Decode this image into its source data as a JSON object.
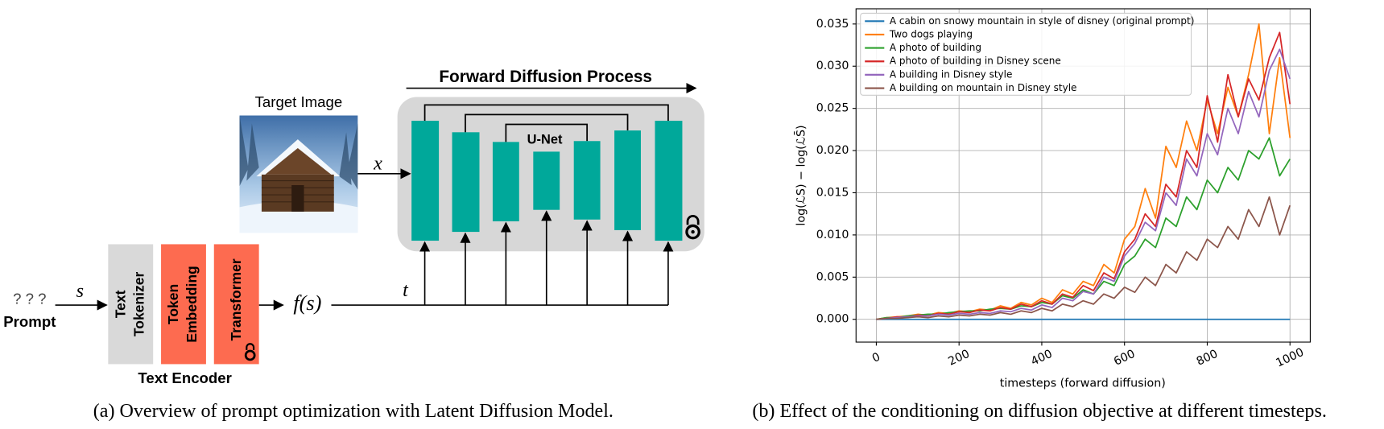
{
  "diagram": {
    "title": "Forward Diffusion Process",
    "target_image_label": "Target Image",
    "unet_label": "U-Net",
    "x_label": "x",
    "t_label": "t",
    "s_label": "s",
    "fs_label": "f(s)",
    "prompt_tokens": "? ? ?",
    "prompt_label": "Prompt",
    "encoder_blocks": [
      [
        "Text",
        "Tokenizer"
      ],
      [
        "Token",
        "Embedding"
      ],
      [
        "Transformer"
      ]
    ],
    "encoder_label": "Text Encoder",
    "caption": "(a) Overview of prompt optimization with Latent Diffusion Model."
  },
  "chart_data": {
    "type": "line",
    "caption": "(b) Effect of the conditioning on diffusion objective at different timesteps.",
    "xlabel": "timesteps (forward diffusion)",
    "ylabel": "log(ℒS) − log(ℒS̄)",
    "x": [
      0,
      25,
      50,
      75,
      100,
      125,
      150,
      175,
      200,
      225,
      250,
      275,
      300,
      325,
      350,
      375,
      400,
      425,
      450,
      475,
      500,
      525,
      550,
      575,
      600,
      625,
      650,
      675,
      700,
      725,
      750,
      775,
      800,
      825,
      850,
      875,
      900,
      925,
      950,
      975,
      1000
    ],
    "series": [
      {
        "name": "A cabin on snowy mountain in style of disney (original prompt)",
        "color": "#1f77b4",
        "values": [
          0,
          0,
          0,
          0,
          0,
          0,
          0,
          0,
          0,
          0,
          0,
          0,
          0,
          0,
          0,
          0,
          0,
          0,
          0,
          0,
          0,
          0,
          0,
          0,
          0,
          0,
          0,
          0,
          0,
          0,
          0,
          0,
          0,
          0,
          0,
          0,
          0,
          0,
          0,
          0,
          0
        ]
      },
      {
        "name": "Two dogs playing",
        "color": "#ff7f0e",
        "values": [
          0,
          0.0002,
          0.0003,
          0.0004,
          0.0006,
          0.0005,
          0.0008,
          0.0007,
          0.001,
          0.0009,
          0.0012,
          0.0011,
          0.0016,
          0.0013,
          0.002,
          0.0017,
          0.0025,
          0.002,
          0.0035,
          0.003,
          0.0045,
          0.004,
          0.0065,
          0.0055,
          0.0095,
          0.011,
          0.0155,
          0.012,
          0.0205,
          0.018,
          0.0235,
          0.02,
          0.026,
          0.022,
          0.0275,
          0.024,
          0.029,
          0.035,
          0.022,
          0.031,
          0.0215
        ]
      },
      {
        "name": " A photo of building",
        "color": "#2ca02c",
        "values": [
          0,
          0.0002,
          0.0002,
          0.0004,
          0.0005,
          0.0006,
          0.0006,
          0.0008,
          0.0009,
          0.001,
          0.001,
          0.0012,
          0.0013,
          0.0012,
          0.0016,
          0.0015,
          0.002,
          0.0018,
          0.0028,
          0.0025,
          0.0035,
          0.003,
          0.0045,
          0.004,
          0.0065,
          0.0075,
          0.0095,
          0.0085,
          0.012,
          0.011,
          0.0145,
          0.013,
          0.0165,
          0.015,
          0.018,
          0.0165,
          0.02,
          0.019,
          0.0215,
          0.017,
          0.019
        ]
      },
      {
        "name": " A photo of building in Disney scene",
        "color": "#d62728",
        "values": [
          0,
          0.0001,
          0.0003,
          0.0002,
          0.0005,
          0.0004,
          0.0007,
          0.0006,
          0.0009,
          0.0008,
          0.0011,
          0.001,
          0.0014,
          0.0012,
          0.0018,
          0.0015,
          0.0022,
          0.0018,
          0.003,
          0.0026,
          0.004,
          0.0034,
          0.0055,
          0.0048,
          0.008,
          0.0095,
          0.0125,
          0.011,
          0.016,
          0.0145,
          0.02,
          0.018,
          0.0265,
          0.021,
          0.029,
          0.024,
          0.0285,
          0.026,
          0.031,
          0.034,
          0.0255
        ]
      },
      {
        "name": " A building in Disney style",
        "color": "#9467bd",
        "values": [
          0,
          0.0001,
          0.0002,
          0.0003,
          0.0004,
          0.0004,
          0.0006,
          0.0005,
          0.0007,
          0.0006,
          0.0008,
          0.0007,
          0.001,
          0.0009,
          0.0013,
          0.0011,
          0.0017,
          0.0014,
          0.0025,
          0.0022,
          0.0033,
          0.003,
          0.005,
          0.0045,
          0.0075,
          0.009,
          0.0115,
          0.0105,
          0.015,
          0.0135,
          0.019,
          0.017,
          0.022,
          0.0195,
          0.025,
          0.022,
          0.027,
          0.024,
          0.0295,
          0.032,
          0.0285
        ]
      },
      {
        "name": " A building on mountain in Disney style",
        "color": "#8c564b",
        "values": [
          0,
          0.0001,
          0.0001,
          0.0002,
          0.0003,
          0.0002,
          0.0004,
          0.0003,
          0.0005,
          0.0004,
          0.0006,
          0.0005,
          0.0008,
          0.0006,
          0.001,
          0.0008,
          0.0013,
          0.001,
          0.0018,
          0.0015,
          0.0022,
          0.0018,
          0.003,
          0.0025,
          0.0038,
          0.0032,
          0.005,
          0.004,
          0.0065,
          0.0055,
          0.008,
          0.007,
          0.0095,
          0.0085,
          0.011,
          0.0095,
          0.013,
          0.011,
          0.0145,
          0.01,
          0.0135
        ]
      }
    ],
    "xlim": [
      -49,
      1049
    ],
    "ylim": [
      -0.0027,
      0.0368
    ],
    "xticks": [
      0,
      200,
      400,
      600,
      800,
      1000
    ],
    "yticks": [
      {
        "value": 0,
        "label": "0.000"
      },
      0.005,
      {
        "value": 0.01,
        "label": "0.010"
      },
      0.015,
      {
        "value": 0.02,
        "label": "0.020"
      },
      0.025,
      {
        "value": 0.03,
        "label": "0.030"
      },
      0.035
    ],
    "grid": true,
    "legend": "upper left"
  }
}
